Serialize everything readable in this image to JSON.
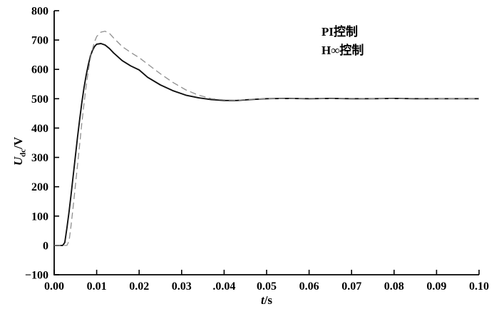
{
  "figure": {
    "background": "#ffffff",
    "axis_color": "#000000"
  },
  "chart_data": {
    "type": "line",
    "title": "",
    "xlabel": {
      "base": "t",
      "unit": "/s"
    },
    "ylabel": {
      "base": "U",
      "sub": "dc",
      "unit": "/V"
    },
    "xlim": [
      0,
      0.1
    ],
    "ylim": [
      -100,
      800
    ],
    "grid": false,
    "legend_position": "inside-upper-right",
    "x_tick_values": [
      0,
      0.01,
      0.02,
      0.03,
      0.04,
      0.05,
      0.06,
      0.07,
      0.08,
      0.09,
      0.1
    ],
    "x_tick_labels": [
      "0.00",
      "0.01",
      "0.02",
      "0.03",
      ".0.04",
      "0.05",
      "0.06",
      "0.07",
      "0.08",
      "0.09",
      "0.10"
    ],
    "y_tick_values": [
      800,
      700,
      600,
      500,
      400,
      300,
      200,
      100,
      0,
      -100
    ],
    "y_tick_labels": [
      "800",
      "700",
      "600",
      "500",
      "400",
      "300",
      "200",
      "100",
      "0",
      "−100"
    ],
    "series": [
      {
        "name": "PI控制",
        "line_style": "dashed",
        "color": "#8f8f8f",
        "width": 1.3,
        "dash": "9,5",
        "points": [
          [
            0,
            0
          ],
          [
            0.002,
            0
          ],
          [
            0.003,
            0
          ],
          [
            0.0035,
            15
          ],
          [
            0.004,
            70
          ],
          [
            0.0045,
            135
          ],
          [
            0.005,
            205
          ],
          [
            0.0055,
            275
          ],
          [
            0.006,
            345
          ],
          [
            0.0065,
            415
          ],
          [
            0.007,
            480
          ],
          [
            0.0075,
            540
          ],
          [
            0.008,
            592
          ],
          [
            0.0085,
            635
          ],
          [
            0.009,
            668
          ],
          [
            0.0095,
            694
          ],
          [
            0.01,
            712
          ],
          [
            0.011,
            727
          ],
          [
            0.012,
            730
          ],
          [
            0.013,
            723
          ],
          [
            0.014,
            707
          ],
          [
            0.016,
            678
          ],
          [
            0.018,
            658
          ],
          [
            0.02,
            640
          ],
          [
            0.022,
            618
          ],
          [
            0.025,
            585
          ],
          [
            0.028,
            555
          ],
          [
            0.031,
            530
          ],
          [
            0.034,
            512
          ],
          [
            0.037,
            500
          ],
          [
            0.04,
            496
          ],
          [
            0.043,
            495
          ],
          [
            0.046,
            498
          ],
          [
            0.05,
            500
          ],
          [
            0.055,
            500
          ],
          [
            0.06,
            501
          ],
          [
            0.065,
            500
          ],
          [
            0.07,
            501
          ],
          [
            0.075,
            500
          ],
          [
            0.08,
            500
          ],
          [
            0.085,
            501
          ],
          [
            0.09,
            500
          ],
          [
            0.095,
            500
          ],
          [
            0.1,
            500
          ]
        ]
      },
      {
        "name": "H∞控制",
        "line_style": "solid",
        "color": "#111111",
        "width": 1.9,
        "dash": null,
        "points": [
          [
            0,
            0
          ],
          [
            0.002,
            0
          ],
          [
            0.0025,
            10
          ],
          [
            0.003,
            60
          ],
          [
            0.0035,
            115
          ],
          [
            0.004,
            175
          ],
          [
            0.0045,
            240
          ],
          [
            0.005,
            305
          ],
          [
            0.0055,
            370
          ],
          [
            0.006,
            430
          ],
          [
            0.0065,
            485
          ],
          [
            0.007,
            535
          ],
          [
            0.0075,
            578
          ],
          [
            0.008,
            614
          ],
          [
            0.0085,
            644
          ],
          [
            0.009,
            664
          ],
          [
            0.0095,
            678
          ],
          [
            0.01,
            686
          ],
          [
            0.011,
            688
          ],
          [
            0.012,
            683
          ],
          [
            0.013,
            671
          ],
          [
            0.014,
            656
          ],
          [
            0.016,
            630
          ],
          [
            0.018,
            612
          ],
          [
            0.02,
            598
          ],
          [
            0.022,
            573
          ],
          [
            0.025,
            547
          ],
          [
            0.028,
            527
          ],
          [
            0.031,
            512
          ],
          [
            0.034,
            503
          ],
          [
            0.037,
            497
          ],
          [
            0.04,
            494
          ],
          [
            0.043,
            494
          ],
          [
            0.046,
            497
          ],
          [
            0.05,
            500
          ],
          [
            0.055,
            501
          ],
          [
            0.06,
            500
          ],
          [
            0.065,
            501
          ],
          [
            0.07,
            500
          ],
          [
            0.075,
            500
          ],
          [
            0.08,
            501
          ],
          [
            0.085,
            500
          ],
          [
            0.09,
            500
          ],
          [
            0.095,
            500
          ],
          [
            0.1,
            500
          ]
        ]
      }
    ]
  }
}
